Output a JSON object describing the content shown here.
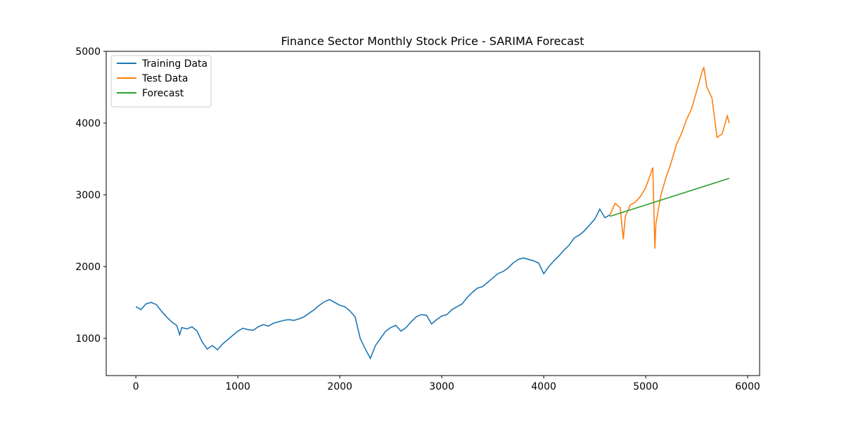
{
  "chart_data": {
    "type": "line",
    "title": "Finance Sector Monthly Stock Price - SARIMA Forecast",
    "xlim": [
      -291,
      6117
    ],
    "xticks": [
      0,
      1000,
      2000,
      3000,
      4000,
      5000,
      6000
    ],
    "ylim": [
      480,
      5000
    ],
    "yticks": [
      1000,
      2000,
      3000,
      4000,
      5000
    ],
    "legend": "upper left",
    "series": [
      {
        "name": "Training Data",
        "color": "#1f77b4",
        "x": [
          0,
          50,
          100,
          150,
          200,
          250,
          300,
          350,
          400,
          430,
          450,
          500,
          550,
          600,
          650,
          700,
          750,
          800,
          850,
          900,
          950,
          1000,
          1050,
          1100,
          1150,
          1200,
          1250,
          1300,
          1350,
          1400,
          1450,
          1500,
          1550,
          1600,
          1650,
          1700,
          1750,
          1800,
          1850,
          1900,
          1950,
          2000,
          2050,
          2100,
          2150,
          2200,
          2250,
          2300,
          2350,
          2400,
          2450,
          2500,
          2550,
          2600,
          2650,
          2700,
          2750,
          2800,
          2850,
          2900,
          2950,
          3000,
          3050,
          3100,
          3150,
          3200,
          3250,
          3300,
          3350,
          3400,
          3450,
          3500,
          3550,
          3600,
          3650,
          3700,
          3750,
          3800,
          3850,
          3900,
          3950,
          4000,
          4050,
          4100,
          4150,
          4200,
          4250,
          4300,
          4350,
          4400,
          4450,
          4500,
          4550,
          4600,
          4650
        ],
        "values": [
          1440,
          1400,
          1480,
          1500,
          1470,
          1380,
          1300,
          1230,
          1180,
          1050,
          1150,
          1130,
          1160,
          1100,
          950,
          850,
          900,
          840,
          920,
          980,
          1040,
          1100,
          1140,
          1120,
          1110,
          1160,
          1190,
          1170,
          1210,
          1230,
          1250,
          1260,
          1250,
          1270,
          1300,
          1350,
          1400,
          1460,
          1510,
          1540,
          1500,
          1460,
          1440,
          1380,
          1300,
          1000,
          850,
          720,
          900,
          1000,
          1100,
          1150,
          1180,
          1100,
          1150,
          1230,
          1300,
          1330,
          1320,
          1200,
          1260,
          1310,
          1330,
          1400,
          1440,
          1480,
          1570,
          1640,
          1700,
          1720,
          1780,
          1840,
          1900,
          1930,
          1980,
          2050,
          2100,
          2120,
          2100,
          2080,
          2050,
          1900,
          2000,
          2080,
          2150,
          2230,
          2300,
          2400,
          2440,
          2500,
          2580,
          2660,
          2800,
          2680,
          2720
        ]
      },
      {
        "name": "Test Data",
        "color": "#ff7f0e",
        "x": [
          4650,
          4700,
          4750,
          4780,
          4800,
          4850,
          4900,
          4950,
          5000,
          5050,
          5070,
          5090,
          5100,
          5150,
          5200,
          5250,
          5300,
          5350,
          5400,
          5450,
          5500,
          5550,
          5570,
          5600,
          5650,
          5700,
          5750,
          5800,
          5820
        ],
        "values": [
          2720,
          2880,
          2820,
          2380,
          2700,
          2860,
          2900,
          2980,
          3100,
          3300,
          3380,
          2250,
          2600,
          3000,
          3250,
          3450,
          3700,
          3850,
          4050,
          4200,
          4450,
          4700,
          4780,
          4500,
          4350,
          3800,
          3850,
          4100,
          4000
        ]
      },
      {
        "name": "Forecast",
        "color": "#2ca02c",
        "x": [
          4650,
          5820
        ],
        "values": [
          2700,
          3230
        ]
      }
    ]
  }
}
